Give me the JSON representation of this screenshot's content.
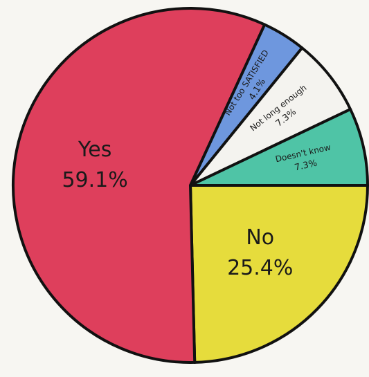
{
  "chart_data": {
    "type": "pie",
    "categories": [
      "No",
      "Yes",
      "Not too SATISFIED",
      "Not long enough",
      "Doesn't know"
    ],
    "values": [
      25.4,
      59.1,
      4.1,
      7.3,
      7.3
    ],
    "value_labels": [
      "25.4%",
      "59.1%",
      "4.1%",
      "7.3%",
      "7.3%"
    ],
    "colors": [
      "#e6dc3c",
      "#de3f5c",
      "#6e97de",
      "#f4f3ef",
      "#4fc4a6"
    ]
  }
}
